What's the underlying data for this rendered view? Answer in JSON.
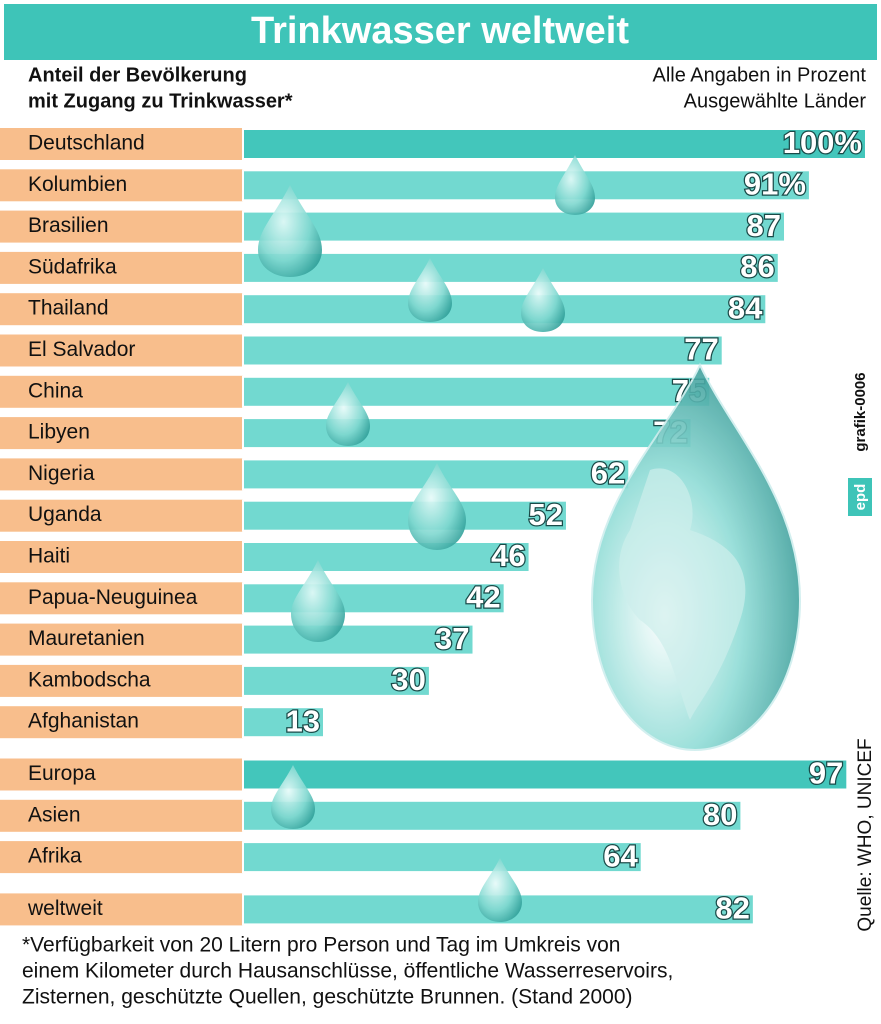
{
  "chart_data": {
    "type": "bar",
    "title": "Trinkwasser weltweit",
    "subtitle": [
      "Anteil der Bevölkerung",
      "mit Zugang zu Trinkwasser*"
    ],
    "notes": [
      "Alle Angaben in Prozent",
      "Ausgewählte Länder"
    ],
    "categories": [
      "Deutschland",
      "Kolumbien",
      "Brasilien",
      "Südafrika",
      "Thailand",
      "El Salvador",
      "China",
      "Libyen",
      "Nigeria",
      "Uganda",
      "Haiti",
      "Papua-Neuguinea",
      "Mauretanien",
      "Kambodscha",
      "Afghanistan",
      "Europa",
      "Asien",
      "Afrika",
      "weltweit"
    ],
    "values": [
      100,
      91,
      87,
      86,
      84,
      77,
      75,
      72,
      62,
      52,
      46,
      42,
      37,
      30,
      13,
      97,
      80,
      64,
      82
    ],
    "value_labels": [
      "100%",
      "91%",
      "87",
      "86",
      "84",
      "77",
      "75",
      "72",
      "62",
      "52",
      "46",
      "42",
      "37",
      "30",
      "13",
      "97",
      "80",
      "64",
      "82"
    ],
    "colors": [
      "#43c6bb",
      "#72d9d0",
      "#72d9d0",
      "#72d9d0",
      "#72d9d0",
      "#72d9d0",
      "#72d9d0",
      "#72d9d0",
      "#72d9d0",
      "#72d9d0",
      "#72d9d0",
      "#72d9d0",
      "#72d9d0",
      "#72d9d0",
      "#72d9d0",
      "#43c6bb",
      "#72d9d0",
      "#72d9d0",
      "#72d9d0"
    ],
    "source": "Quelle: WHO, UNICEF",
    "credit": [
      "epd",
      "grafik-0006"
    ],
    "footnote": [
      "*Verfügbarkeit von 20 Litern pro Person und Tag im Umkreis von",
      "einem Kilometer durch Hausanschlüsse, öffentliche Wasserreservoirs,",
      "Zisternen, geschützte Quellen, geschützte Brunnen. (Stand 2000)"
    ]
  }
}
